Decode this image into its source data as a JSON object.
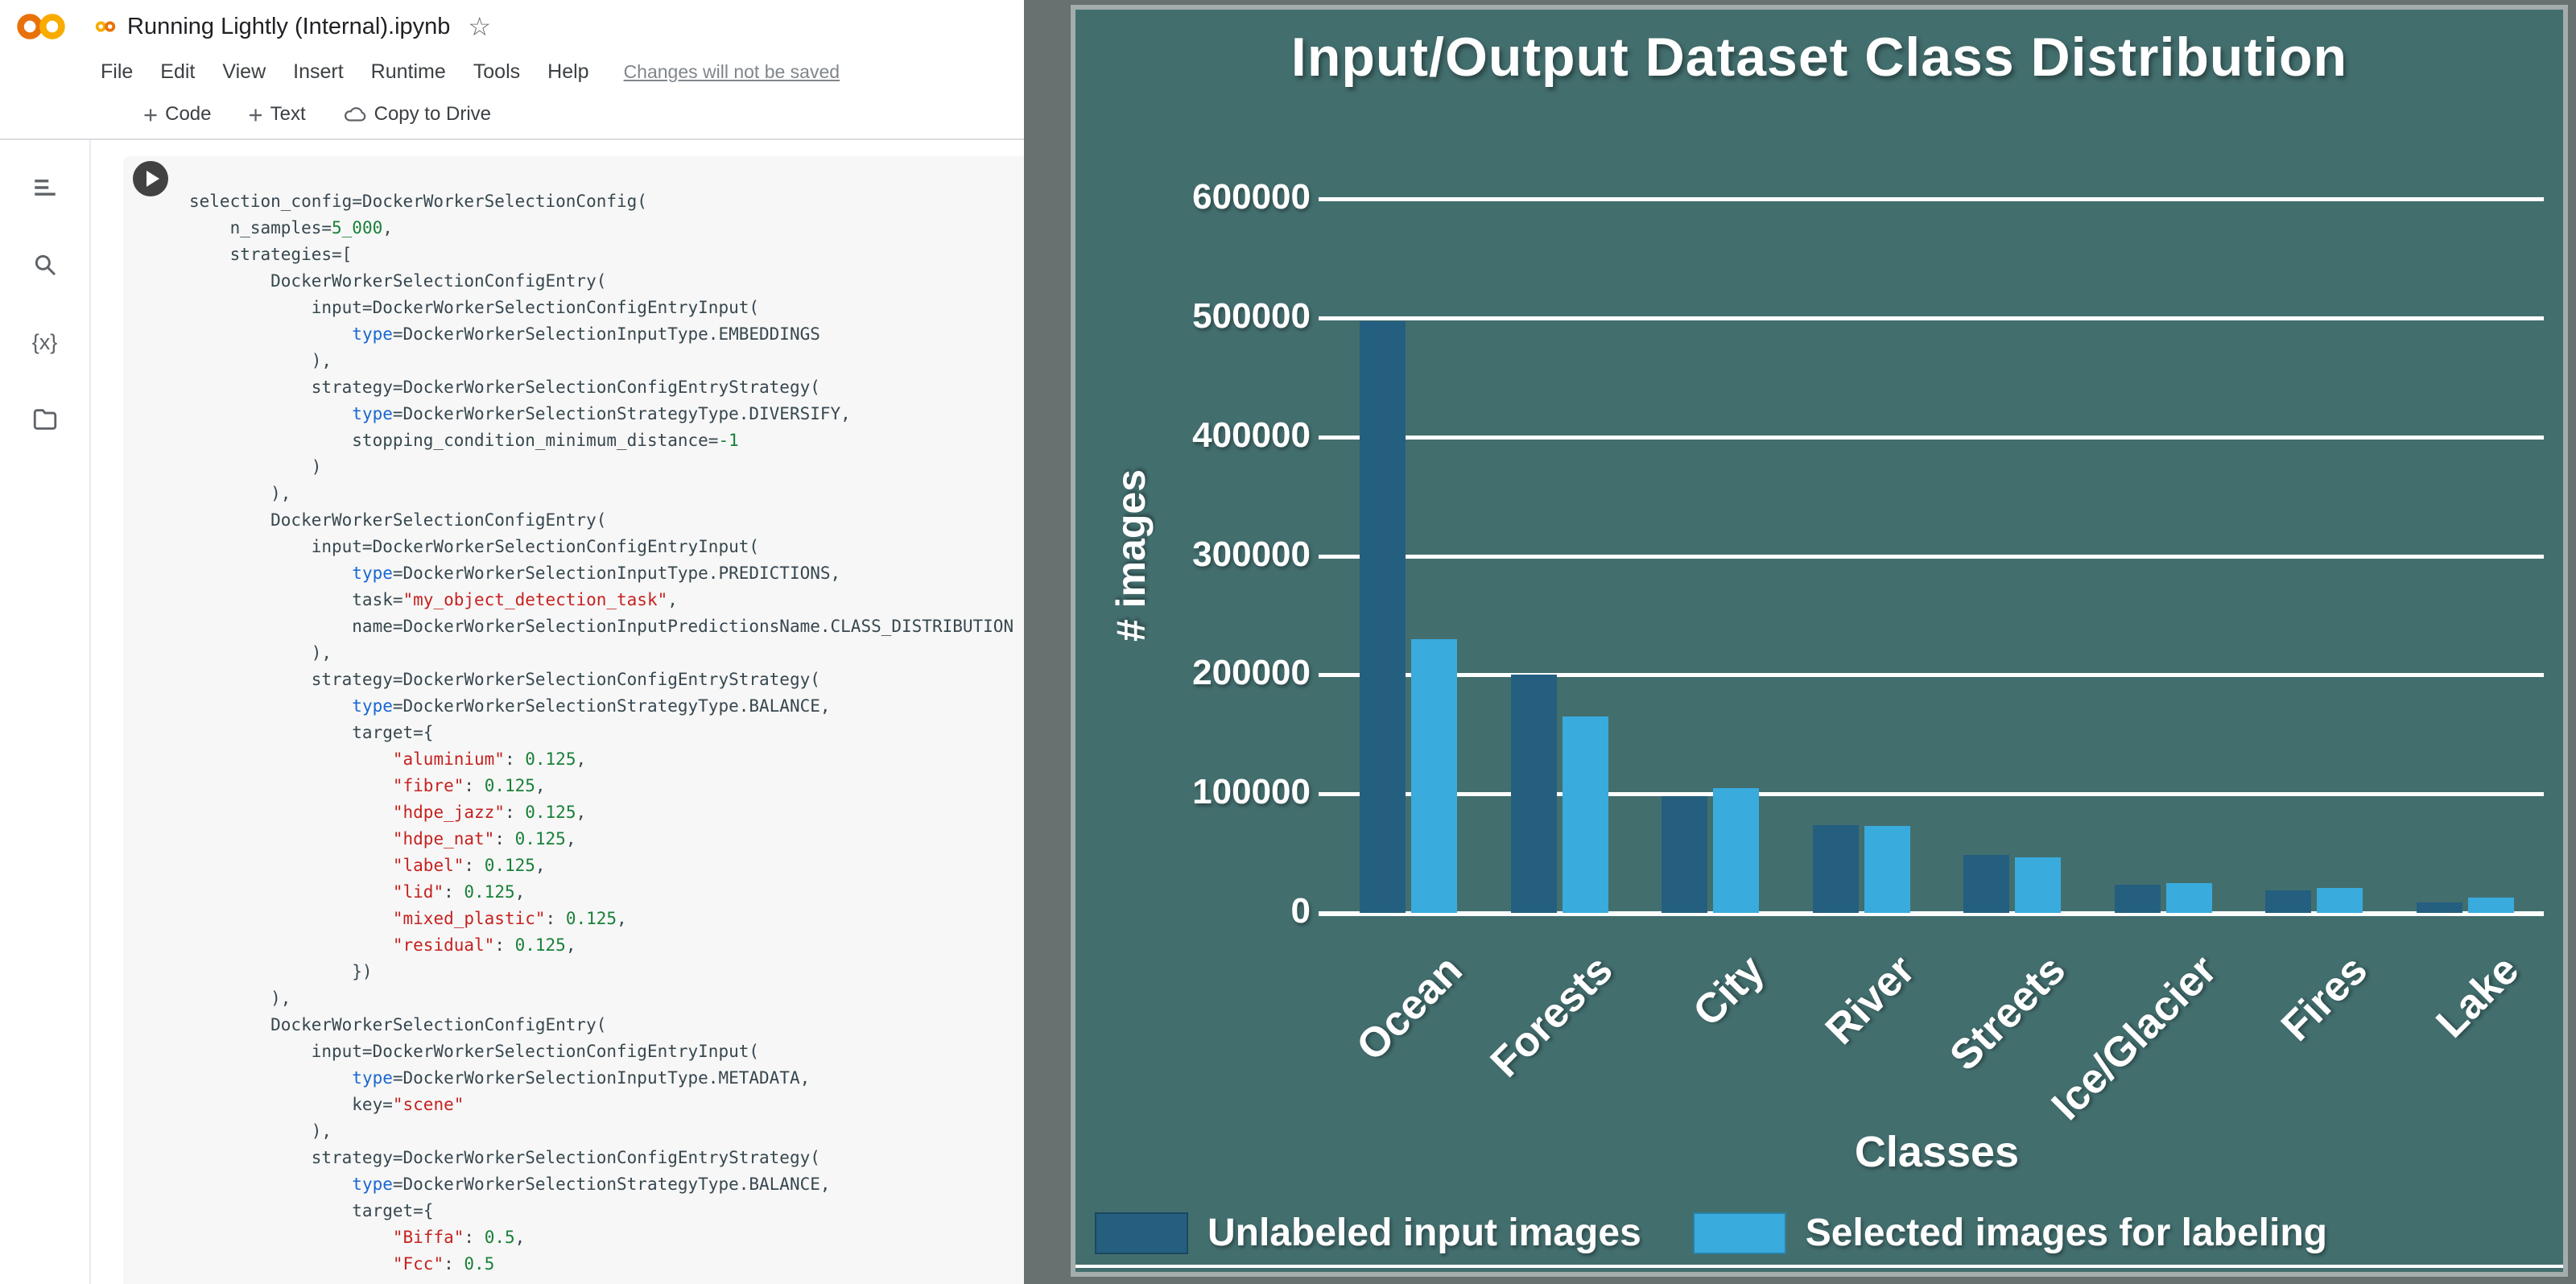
{
  "colab": {
    "title": "Running Lightly (Internal).ipynb",
    "icons": {
      "plus": "+",
      "star": "☆",
      "variables": "{x}"
    },
    "menu": {
      "items": [
        "File",
        "Edit",
        "View",
        "Insert",
        "Runtime",
        "Tools",
        "Help"
      ],
      "status_link": "Changes will not be saved"
    },
    "toolbar": {
      "code_label": "Code",
      "text_label": "Text",
      "copy_label": "Copy to Drive"
    },
    "code": {
      "lines": [
        "selection_config=DockerWorkerSelectionConfig(",
        "    n_samples=5_000,",
        "    strategies=[",
        "        DockerWorkerSelectionConfigEntry(",
        "            input=DockerWorkerSelectionConfigEntryInput(",
        "                type=DockerWorkerSelectionInputType.EMBEDDINGS",
        "            ),",
        "            strategy=DockerWorkerSelectionConfigEntryStrategy(",
        "                type=DockerWorkerSelectionStrategyType.DIVERSIFY,",
        "                stopping_condition_minimum_distance=-1",
        "            )",
        "        ),",
        "        DockerWorkerSelectionConfigEntry(",
        "            input=DockerWorkerSelectionConfigEntryInput(",
        "                type=DockerWorkerSelectionInputType.PREDICTIONS,",
        "                task=\"my_object_detection_task\",",
        "                name=DockerWorkerSelectionInputPredictionsName.CLASS_DISTRIBUTION",
        "            ),",
        "            strategy=DockerWorkerSelectionConfigEntryStrategy(",
        "                type=DockerWorkerSelectionStrategyType.BALANCE,",
        "                target={",
        "                    \"aluminium\": 0.125,",
        "                    \"fibre\": 0.125,",
        "                    \"hdpe_jazz\": 0.125,",
        "                    \"hdpe_nat\": 0.125,",
        "                    \"label\": 0.125,",
        "                    \"lid\": 0.125,",
        "                    \"mixed_plastic\": 0.125,",
        "                    \"residual\": 0.125,",
        "                })",
        "        ),",
        "        DockerWorkerSelectionConfigEntry(",
        "            input=DockerWorkerSelectionConfigEntryInput(",
        "                type=DockerWorkerSelectionInputType.METADATA,",
        "                key=\"scene\"",
        "            ),",
        "            strategy=DockerWorkerSelectionConfigEntryStrategy(",
        "                type=DockerWorkerSelectionStrategyType.BALANCE,",
        "                target={",
        "                    \"Biffa\": 0.5,",
        "                    \"Fcc\": 0.5"
      ]
    },
    "colors": {
      "string_token": "#c5221f",
      "number_token": "#188038",
      "builtin_token": "#1967d2",
      "logo_left": "#E8710A",
      "logo_right": "#F9AB00"
    }
  },
  "chart_data": {
    "type": "bar",
    "title": "Input/Output Dataset Class Distribution",
    "xlabel": "Classes",
    "ylabel": "# images",
    "ylim": [
      0,
      600000
    ],
    "yticks": [
      0,
      100000,
      200000,
      300000,
      400000,
      500000,
      600000
    ],
    "grid": true,
    "legend_position": "bottom",
    "background": "#436e6e",
    "categories": [
      "Ocean",
      "Forests",
      "City",
      "River",
      "Streets",
      "Ice/Glacier",
      "Fires",
      "Lake"
    ],
    "series": [
      {
        "name": "Unlabeled input images",
        "color": "#245f80",
        "values": [
          497000,
          200000,
          98000,
          74000,
          49000,
          24000,
          19000,
          9000
        ]
      },
      {
        "name": "Selected images for labeling",
        "color": "#39abdd",
        "values": [
          230000,
          165000,
          105000,
          73000,
          47000,
          25000,
          21000,
          13000
        ]
      }
    ]
  }
}
